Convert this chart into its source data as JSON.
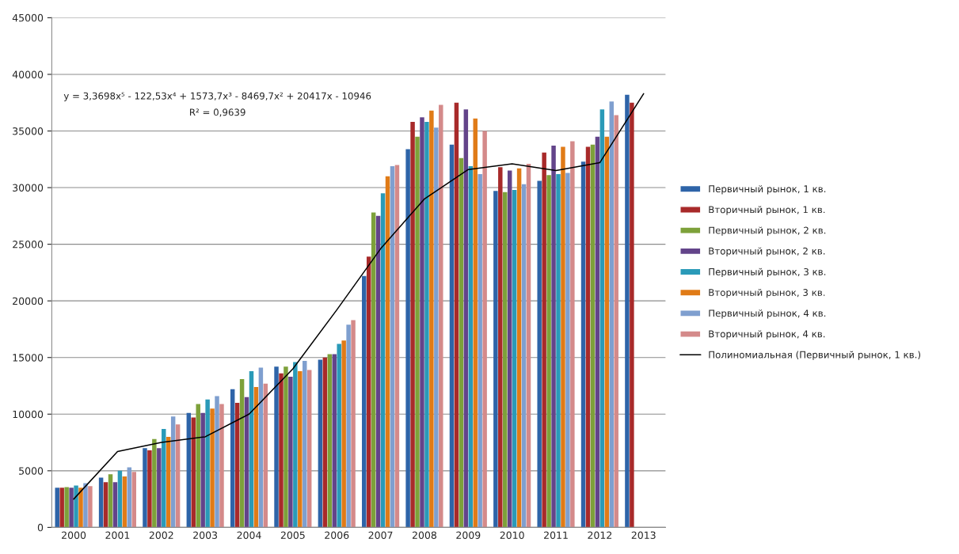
{
  "chart_data": {
    "type": "bar",
    "categories": [
      "2000",
      "2001",
      "2002",
      "2003",
      "2004",
      "2005",
      "2006",
      "2007",
      "2008",
      "2009",
      "2010",
      "2011",
      "2012",
      "2013"
    ],
    "series": [
      {
        "name": "Первичный рынок, 1 кв.",
        "color": "#2e64a8",
        "values": [
          3500,
          4400,
          7000,
          10100,
          12200,
          14200,
          14800,
          22200,
          33400,
          33800,
          29700,
          30600,
          32300,
          38200
        ]
      },
      {
        "name": "Вторичный рынок, 1 кв.",
        "color": "#a82a2a",
        "values": [
          3500,
          4000,
          6800,
          9700,
          11000,
          13600,
          15000,
          23900,
          35800,
          37500,
          31800,
          33100,
          33600,
          37500
        ]
      },
      {
        "name": "Первичный рынок, 2 кв.",
        "color": "#7da13a",
        "values": [
          3550,
          4700,
          7800,
          10900,
          13100,
          14200,
          15300,
          27800,
          34500,
          32600,
          29600,
          31100,
          33800,
          null
        ]
      },
      {
        "name": "Вторичный рынок, 2 кв.",
        "color": "#63448a",
        "values": [
          3500,
          4000,
          7000,
          10100,
          11500,
          13300,
          15300,
          27500,
          36200,
          36900,
          31500,
          33700,
          34500,
          null
        ]
      },
      {
        "name": "Первичный рынок, 3 кв.",
        "color": "#2a9ab8",
        "values": [
          3700,
          5000,
          8700,
          11300,
          13800,
          14600,
          16200,
          29500,
          35800,
          31900,
          29800,
          31200,
          36900,
          null
        ]
      },
      {
        "name": "Вторичный рынок, 3 кв.",
        "color": "#e07b17",
        "values": [
          3500,
          4500,
          8000,
          10500,
          12400,
          13800,
          16500,
          31000,
          36800,
          36100,
          31700,
          33600,
          34500,
          null
        ]
      },
      {
        "name": "Первичный рынок, 4 кв.",
        "color": "#7f9fcf",
        "values": [
          3900,
          5300,
          9800,
          11600,
          14100,
          14700,
          17900,
          31900,
          35300,
          31200,
          30300,
          31300,
          37600,
          null
        ]
      },
      {
        "name": "Вторичный рынок, 4 кв.",
        "color": "#d48a8a",
        "values": [
          3650,
          4900,
          9100,
          10900,
          12700,
          13900,
          18300,
          32000,
          37300,
          35000,
          32100,
          34100,
          36400,
          null
        ]
      },
      {
        "name": "Полиномиальная (Первичный рынок, 1 кв.)",
        "type": "line",
        "color": "#000000",
        "values": [
          2500,
          6700,
          7500,
          8000,
          10000,
          14000,
          19200,
          24600,
          29000,
          31600,
          32100,
          31500,
          32200,
          38300
        ]
      }
    ],
    "ylim": [
      0,
      45000
    ],
    "yticks": [
      0,
      5000,
      10000,
      15000,
      20000,
      25000,
      30000,
      35000,
      40000,
      45000
    ],
    "grid": "y",
    "legend": "right",
    "annotations": [
      "y = 3,3698x⁵ - 122,53x⁴ + 1573,7x³ - 8469,7x² + 20417x - 10946",
      "R² = 0,9639"
    ]
  }
}
